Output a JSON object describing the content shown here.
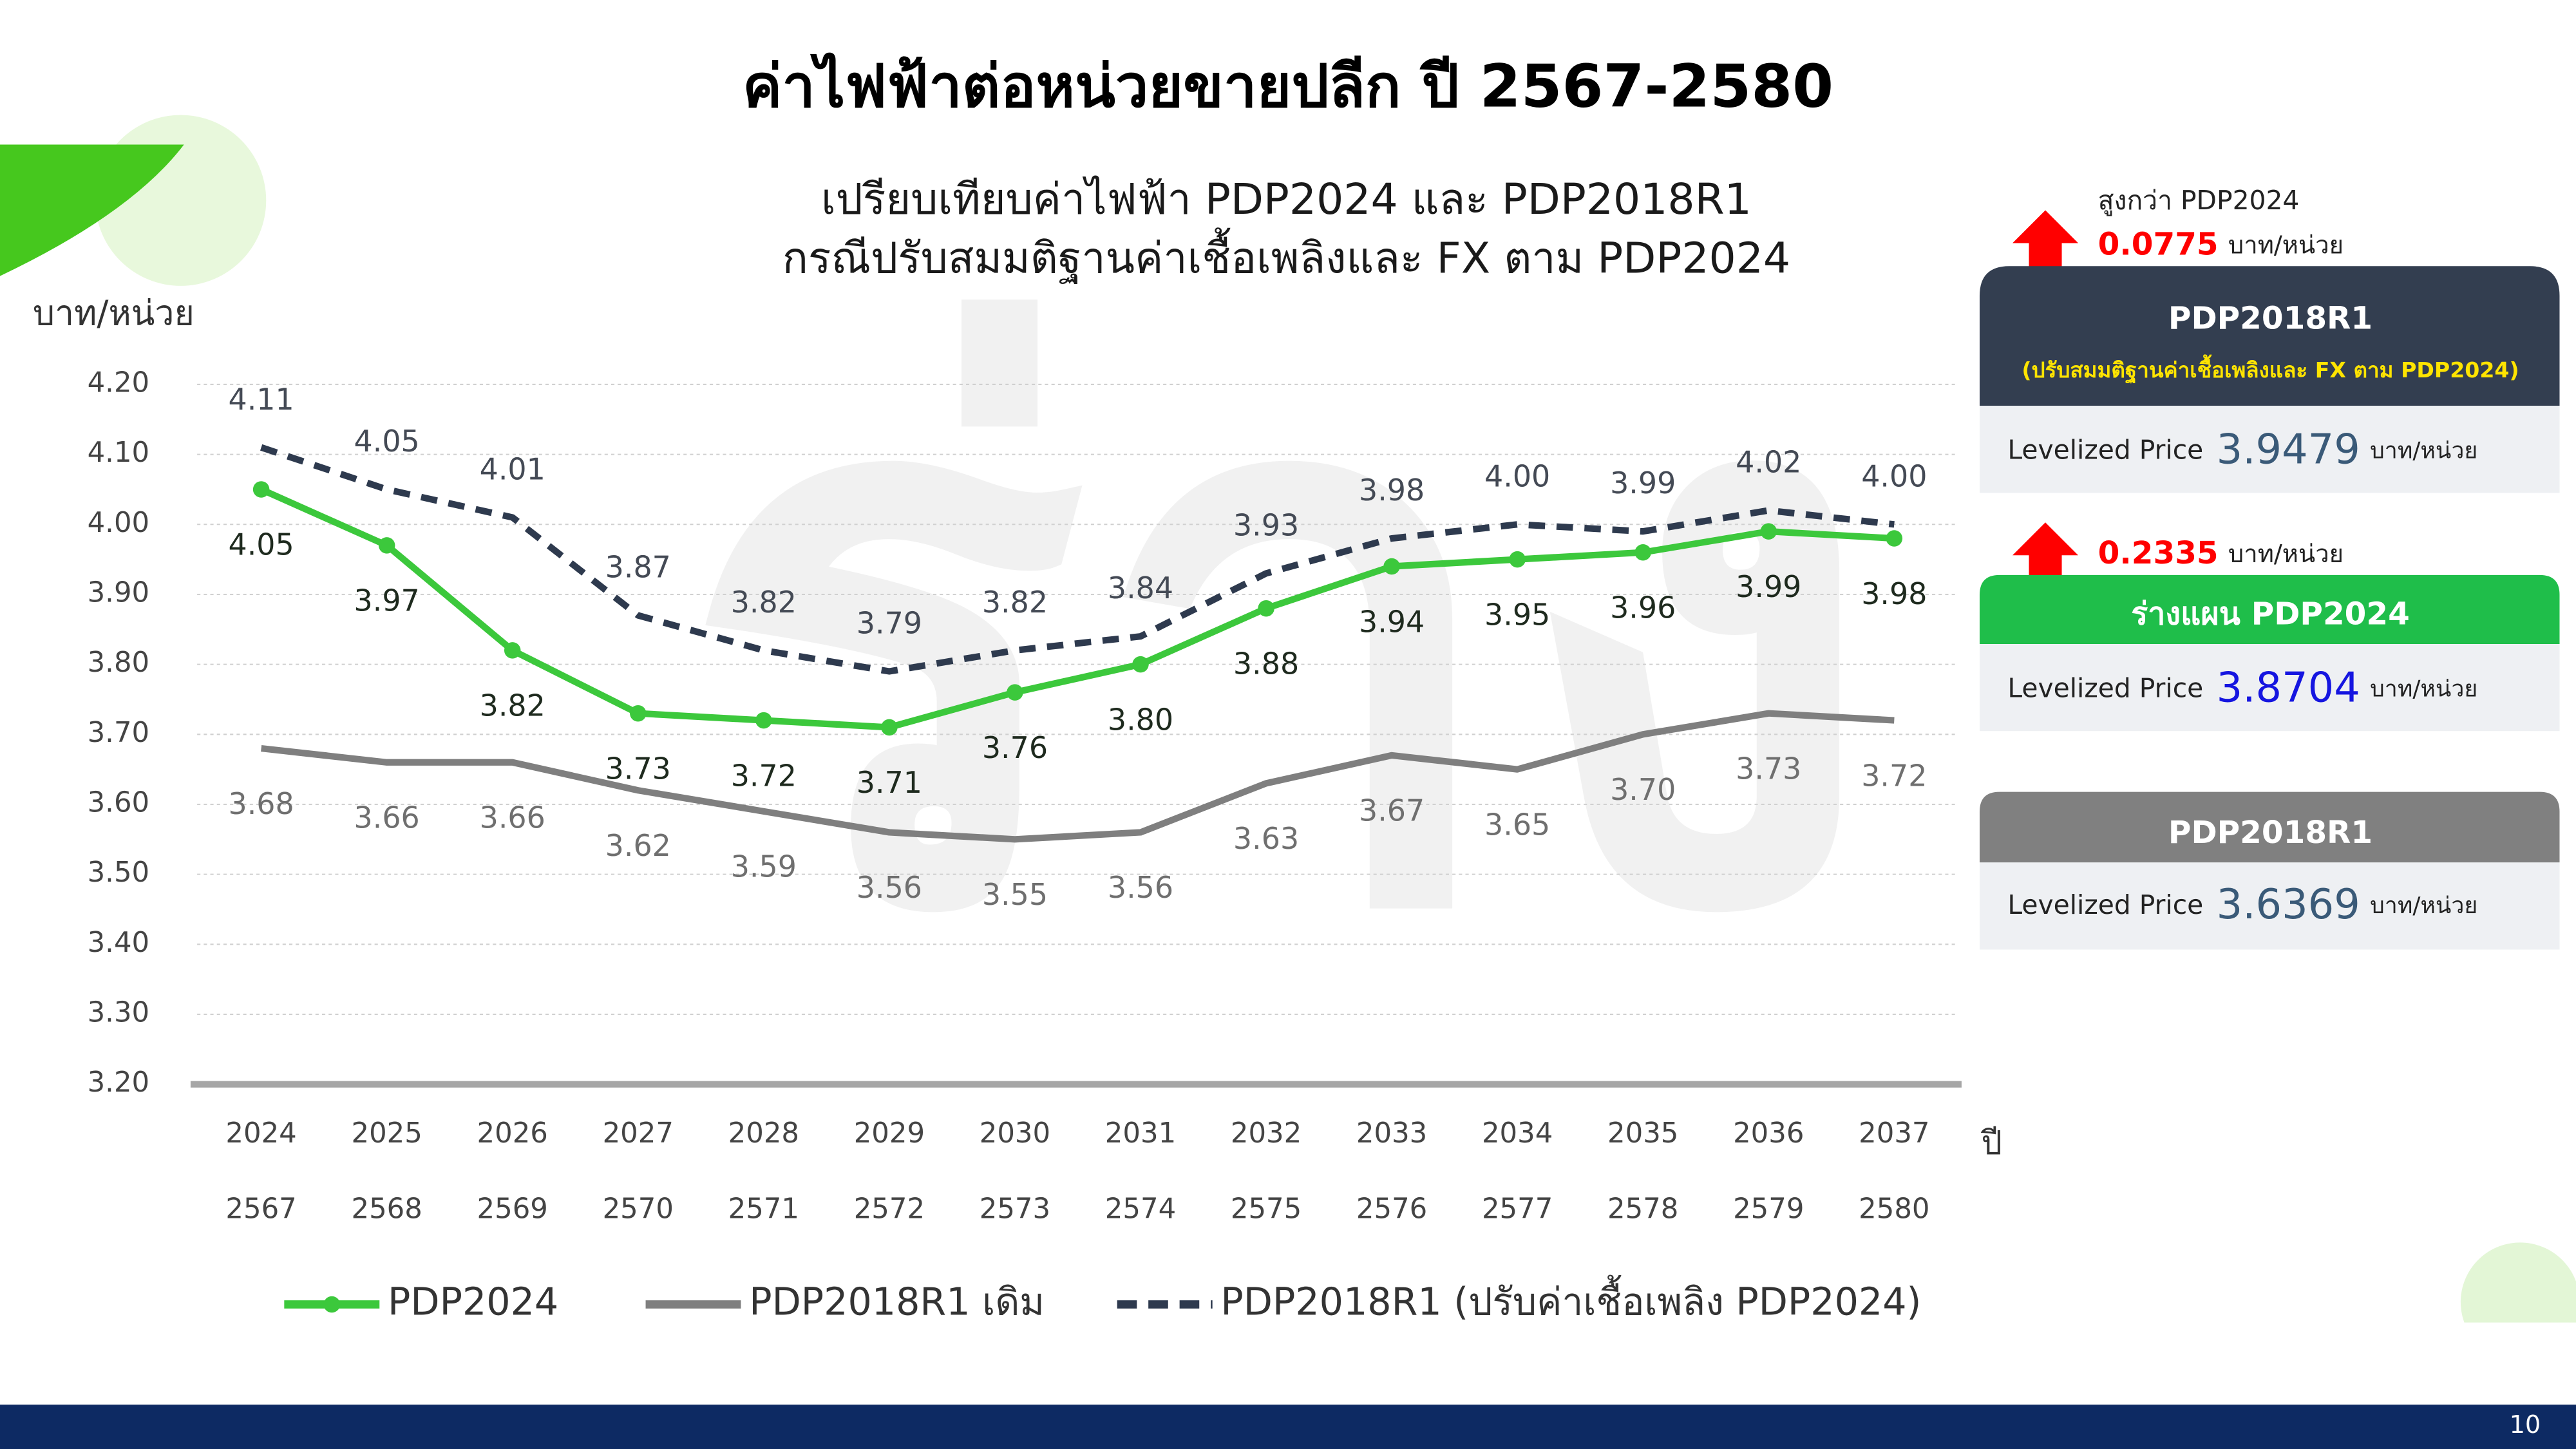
{
  "page_title": "ค่าไฟฟ้าต่อหน่วยขายปลีก ปี 2567-2580",
  "page_number": "10",
  "chart_data": {
    "type": "line",
    "title": "เปรียบเทียบค่าไฟฟ้า PDP2024 และ PDP2018R1",
    "subtitle": "กรณีปรับสมมติฐานค่าเชื้อเพลิงและ FX ตาม PDP2024",
    "y_label": "บาท/หน่วย",
    "x_label": "ปี",
    "categories": [
      "2024",
      "2025",
      "2026",
      "2027",
      "2028",
      "2029",
      "2030",
      "2031",
      "2032",
      "2033",
      "2034",
      "2035",
      "2036",
      "2037"
    ],
    "categories_thai": [
      "2567",
      "2568",
      "2569",
      "2570",
      "2571",
      "2572",
      "2573",
      "2574",
      "2575",
      "2576",
      "2577",
      "2578",
      "2579",
      "2580"
    ],
    "ylim": [
      3.2,
      4.2
    ],
    "yticks": [
      {
        "value": 3.2,
        "label": "3.20"
      },
      {
        "value": 3.3,
        "label": "3.30"
      },
      {
        "value": 3.4,
        "label": "3.40"
      },
      {
        "value": 3.5,
        "label": "3.50"
      },
      {
        "value": 3.6,
        "label": "3.60"
      },
      {
        "value": 3.7,
        "label": "3.70"
      },
      {
        "value": 3.8,
        "label": "3.80"
      },
      {
        "value": 3.9,
        "label": "3.90"
      },
      {
        "value": 4.0,
        "label": "4.00"
      },
      {
        "value": 4.1,
        "label": "4.10"
      },
      {
        "value": 4.2,
        "label": "4.20"
      }
    ],
    "grid": true,
    "legend": "bottom",
    "series": [
      {
        "name": "PDP2024",
        "color": "#3cc83c",
        "marker": true,
        "dash": false,
        "label_position": "below",
        "label_color": "#1e2a1e",
        "values": [
          4.05,
          3.97,
          3.82,
          3.73,
          3.72,
          3.71,
          3.76,
          3.8,
          3.88,
          3.94,
          3.95,
          3.96,
          3.99,
          3.98
        ],
        "value_labels": [
          "4.05",
          "3.97",
          "3.82",
          "3.73",
          "3.72",
          "3.71",
          "3.76",
          "3.80",
          "3.88",
          "3.94",
          "3.95",
          "3.96",
          "3.99",
          "3.98"
        ]
      },
      {
        "name": "PDP2018R1 เดิม",
        "color": "#7f7f7f",
        "marker": false,
        "dash": false,
        "label_position": "below",
        "label_color": "#6f6f6f",
        "values": [
          3.68,
          3.66,
          3.66,
          3.62,
          3.59,
          3.56,
          3.55,
          3.56,
          3.63,
          3.67,
          3.65,
          3.7,
          3.73,
          3.72
        ],
        "value_labels": [
          "3.68",
          "3.66",
          "3.66",
          "3.62",
          "3.59",
          "3.56",
          "3.55",
          "3.56",
          "3.63",
          "3.67",
          "3.65",
          "3.70",
          "3.73",
          "3.72"
        ]
      },
      {
        "name": "PDP2018R1 (ปรับค่าเชื้อเพลิง PDP2024)",
        "color": "#2e3a4e",
        "marker": false,
        "dash": true,
        "label_position": "above",
        "label_color": "#444a55",
        "values": [
          4.11,
          4.05,
          4.01,
          3.87,
          3.82,
          3.79,
          3.82,
          3.84,
          3.93,
          3.98,
          4.0,
          3.99,
          4.02,
          4.0
        ],
        "value_labels": [
          "4.11",
          "4.05",
          "4.01",
          "3.87",
          "3.82",
          "3.79",
          "3.82",
          "3.84",
          "3.93",
          "3.98",
          "4.00",
          "3.99",
          "4.02",
          "4.00"
        ]
      }
    ]
  },
  "panels": [
    {
      "note": "สูงกว่า PDP2024",
      "diff": 0.0775,
      "diff_unit": "บาท/หน่วย",
      "title": "PDP2018R1",
      "subtitle": "(ปรับสมมติฐานค่าเชื้อเพลิงและ FX ตาม PDP2024)",
      "label": "Levelized Price",
      "price": 3.9479,
      "price_unit": "บาท/หน่วย"
    },
    {
      "diff": 0.2335,
      "diff_unit": "บาท/หน่วย",
      "title": "ร่างแผน PDP2024",
      "label": "Levelized Price",
      "price": 3.8704,
      "price_unit": "บาท/หน่วย"
    },
    {
      "title": "PDP2018R1",
      "label": "Levelized Price",
      "price": 3.6369,
      "price_unit": "บาท/หน่วย"
    }
  ]
}
